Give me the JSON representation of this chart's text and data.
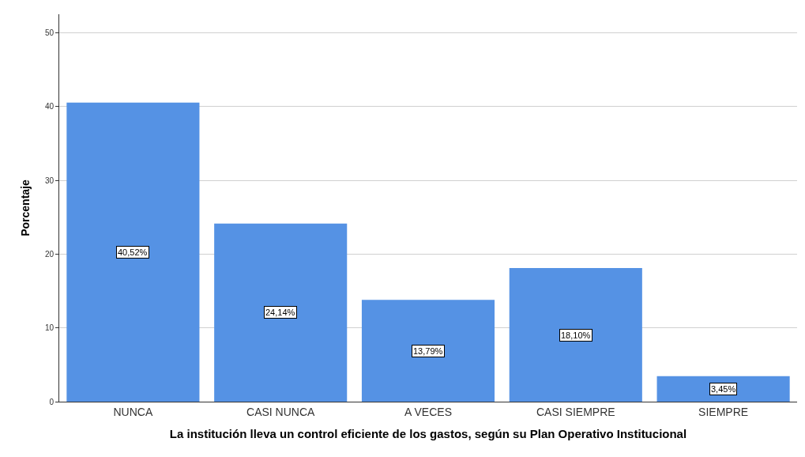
{
  "chart_data": {
    "type": "bar",
    "xlabel": "La institución lleva un control eficiente de los gastos, según su Plan Operativo Institucional",
    "ylabel": "Porcentaje",
    "categories": [
      "NUNCA",
      "CASI NUNCA",
      "A VECES",
      "CASI SIEMPRE",
      "SIEMPRE"
    ],
    "values": [
      40.52,
      24.14,
      13.79,
      18.1,
      3.45
    ],
    "value_labels": [
      "40,52%",
      "24,14%",
      "13,79%",
      "18,10%",
      "3,45%"
    ],
    "color": "#5592e4",
    "ylim": [
      0,
      52.5
    ],
    "yticks": [
      0,
      10,
      20,
      30,
      40,
      50
    ],
    "grid": "y"
  }
}
